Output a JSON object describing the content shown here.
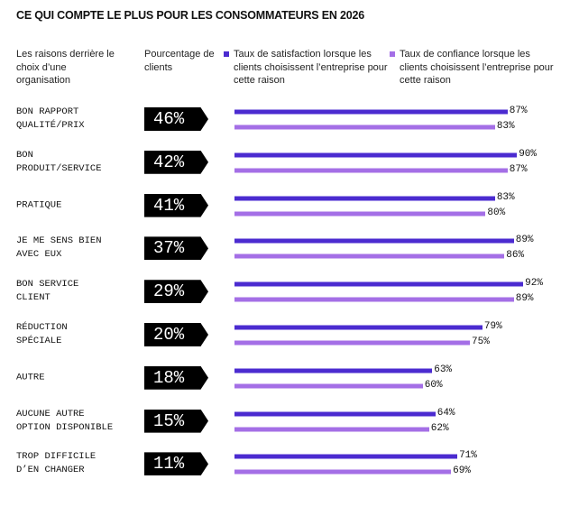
{
  "chart_data": {
    "type": "bar",
    "title": "CE QUI COMPTE LE PLUS POUR LES CONSOMMATEURS EN 2026",
    "category_header": "Les raisons derrière le choix d’une organisation",
    "categories": [
      "BON RAPPORT QUALITÉ/PRIX",
      "BON PRODUIT/SERVICE",
      "PRATIQUE",
      "JE ME SENS BIEN AVEC EUX",
      "BON SERVICE CLIENT",
      "RÉDUCTION SPÉCIALE",
      "AUTRE",
      "AUCUNE AUTRE OPTION DISPONIBLE",
      "TROP DIFFICILE D’EN CHANGER"
    ],
    "share": {
      "name": "Pourcentage de clients",
      "values": [
        46,
        42,
        41,
        37,
        29,
        20,
        18,
        15,
        11
      ],
      "value_labels": [
        "46%",
        "42%",
        "41%",
        "37%",
        "29%",
        "20%",
        "18%",
        "15%",
        "11%"
      ]
    },
    "series": [
      {
        "name": "Taux de satisfaction lorsque les clients choisissent l’entreprise pour cette raison",
        "color": "#4b2bd0",
        "values": [
          87,
          90,
          83,
          89,
          92,
          79,
          63,
          64,
          71
        ],
        "value_labels": [
          "87%",
          "90%",
          "83%",
          "89%",
          "92%",
          "79%",
          "63%",
          "64%",
          "71%"
        ]
      },
      {
        "name": "Taux de confiance lorsque les clients choisissent l’entreprise pour cette raison",
        "color": "#a46fe6",
        "values": [
          83,
          87,
          80,
          86,
          89,
          75,
          60,
          62,
          69
        ],
        "value_labels": [
          "83%",
          "87%",
          "80%",
          "86%",
          "89%",
          "75%",
          "60%",
          "62%",
          "69%"
        ]
      }
    ]
  }
}
